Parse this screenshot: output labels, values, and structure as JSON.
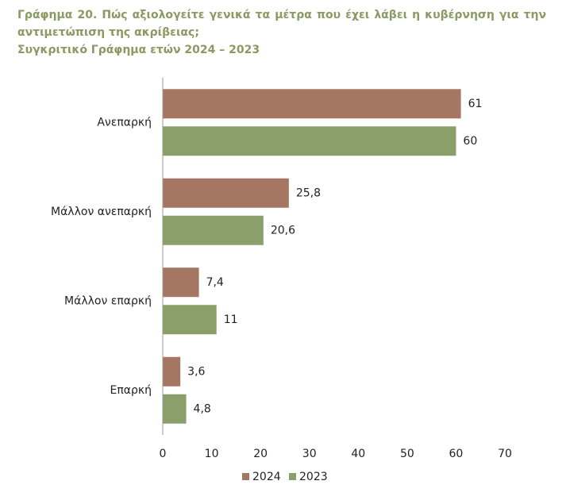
{
  "chart_data": {
    "type": "hbar",
    "title": "Γράφημα 20.  Πώς αξιολογείτε γενικά τα μέτρα που έχει λάβει η κυβέρνηση για την αντιμετώπιση της ακρίβειας;",
    "subtitle": "Συγκριτικό Γράφημα ετών 2024 – 2023",
    "categories": [
      "Ανεπαρκή",
      "Μάλλον ανεπαρκή",
      "Μάλλον επαρκή",
      "Επαρκή"
    ],
    "series": [
      {
        "name": "2024",
        "color": "#a57763",
        "values": [
          61,
          25.8,
          7.4,
          3.6
        ],
        "value_labels": [
          "61",
          "25,8",
          "7,4",
          "3,6"
        ]
      },
      {
        "name": "2023",
        "color": "#8a9f6a",
        "values": [
          60,
          20.6,
          11,
          4.8
        ],
        "value_labels": [
          "60",
          "20,6",
          "11",
          "4,8"
        ]
      }
    ],
    "xlim": [
      0,
      70
    ],
    "xticks": [
      0,
      10,
      20,
      30,
      40,
      50,
      60,
      70
    ],
    "legend": "bottom"
  }
}
